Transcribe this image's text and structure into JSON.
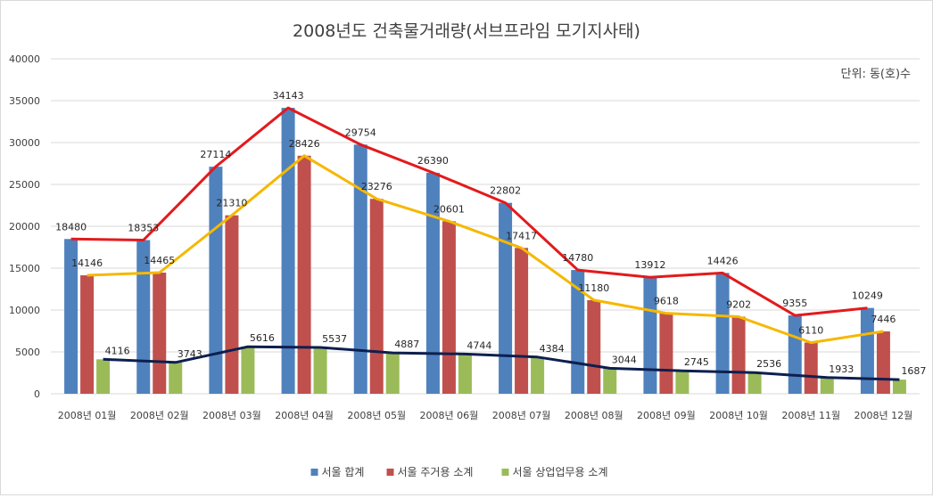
{
  "chart_data": {
    "type": "bar",
    "title": "2008년도 건축물거래량(서브프라임 모기지사태)",
    "unit_note": "단위: 동(호)수",
    "categories": [
      "2008년 01월",
      "2008년 02월",
      "2008년 03월",
      "2008년 04월",
      "2008년 05월",
      "2008년 06월",
      "2008년 07월",
      "2008년 08월",
      "2008년 09월",
      "2008년 10월",
      "2008년 11월",
      "2008년 12월"
    ],
    "ylim": [
      0,
      40000
    ],
    "yticks": [
      "0",
      "5000",
      "10000",
      "15000",
      "20000",
      "25000",
      "30000",
      "35000",
      "40000"
    ],
    "grid": true,
    "legend_position": "bottom",
    "series": [
      {
        "name": "서울 합계",
        "color": "#4f81bd",
        "line_color": "#e31a1c",
        "values": [
          18480,
          18353,
          27114,
          34143,
          29754,
          26390,
          22802,
          14780,
          13912,
          14426,
          9355,
          10249
        ],
        "labels": [
          "18480",
          "18353",
          "27114",
          "34143",
          "29754",
          "26390",
          "22802",
          "14780",
          "13912",
          "14426",
          "9355",
          "10249"
        ]
      },
      {
        "name": "서울 주거용 소계",
        "color": "#c0504d",
        "line_color": "#f5b800",
        "values": [
          14146,
          14465,
          21310,
          28426,
          23276,
          20601,
          17417,
          11180,
          9618,
          9202,
          6110,
          7446
        ],
        "labels": [
          "14146",
          "14465",
          "21310",
          "28426",
          "23276",
          "20601",
          "17417",
          "11180",
          "9618",
          "9202",
          "6110",
          "7446"
        ]
      },
      {
        "name": "서울 상업업무용 소계",
        "color": "#9bbb59",
        "line_color": "#0d1f4f",
        "values": [
          4116,
          3743,
          5616,
          5537,
          4887,
          4744,
          4384,
          3044,
          2745,
          2536,
          1933,
          1687
        ],
        "labels": [
          "4116",
          "3743",
          "5616",
          "5537",
          "4887",
          "4744",
          "4384",
          "3044",
          "2745",
          "2536",
          "1933",
          "1687"
        ]
      }
    ]
  }
}
